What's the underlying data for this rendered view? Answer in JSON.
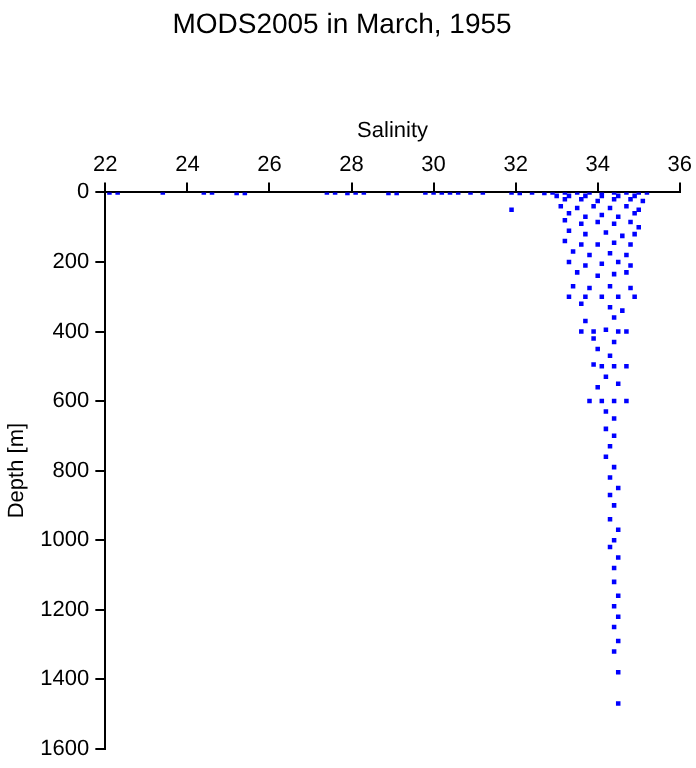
{
  "chart_data": {
    "type": "scatter",
    "title": "MODS2005 in March, 1955",
    "xlabel": "Salinity",
    "ylabel": "Depth [m]",
    "x": [
      22.1,
      22.3,
      23.4,
      24.4,
      24.6,
      25.2,
      25.4,
      27.4,
      27.6,
      27.9,
      28.1,
      28.3,
      28.9,
      29.1,
      29.8,
      30.0,
      30.2,
      30.4,
      30.6,
      30.9,
      31.2,
      31.9,
      32.1,
      32.4,
      32.7,
      32.9,
      33.2,
      33.5,
      33.8,
      34.1,
      34.4,
      34.7,
      35.0,
      35.2,
      31.9,
      33.0,
      33.3,
      33.7,
      34.1,
      34.5,
      34.9,
      33.2,
      33.6,
      34.0,
      34.4,
      34.8,
      35.1,
      33.1,
      33.5,
      33.9,
      34.3,
      34.7,
      35.0,
      33.3,
      33.7,
      34.1,
      34.5,
      34.9,
      33.2,
      33.6,
      34.0,
      34.4,
      34.8,
      35.0,
      33.3,
      33.7,
      34.2,
      34.6,
      34.9,
      33.2,
      33.6,
      34.0,
      34.4,
      34.8,
      33.4,
      33.8,
      34.3,
      34.7,
      33.3,
      33.7,
      34.1,
      34.5,
      34.8,
      33.5,
      34.0,
      34.4,
      34.7,
      33.4,
      33.8,
      34.3,
      34.8,
      33.3,
      33.7,
      34.1,
      34.5,
      34.9,
      33.6,
      34.3,
      34.6,
      33.7,
      34.4,
      33.6,
      33.9,
      34.2,
      34.5,
      34.7,
      33.9,
      34.4,
      34.0,
      34.3,
      33.9,
      34.1,
      34.4,
      34.7,
      34.2,
      34.0,
      34.5,
      33.8,
      34.1,
      34.4,
      34.7,
      34.2,
      34.4,
      34.2,
      34.4,
      34.3,
      34.2,
      34.4,
      34.3,
      34.5,
      34.3,
      34.4,
      34.3,
      34.5,
      34.4,
      34.3,
      34.5,
      34.4,
      34.4,
      34.5,
      34.4,
      34.5,
      34.4,
      34.5,
      34.4,
      34.5,
      34.5
    ],
    "values": [
      0,
      0,
      0,
      0,
      0,
      2,
      2,
      0,
      0,
      2,
      0,
      0,
      2,
      2,
      0,
      0,
      0,
      0,
      0,
      0,
      0,
      0,
      2,
      0,
      2,
      0,
      0,
      0,
      0,
      0,
      0,
      0,
      0,
      0,
      50,
      10,
      10,
      10,
      10,
      10,
      10,
      20,
      20,
      25,
      20,
      20,
      25,
      40,
      45,
      40,
      45,
      40,
      50,
      60,
      70,
      65,
      70,
      60,
      80,
      90,
      85,
      90,
      85,
      100,
      110,
      120,
      115,
      125,
      120,
      140,
      150,
      150,
      145,
      150,
      170,
      180,
      175,
      180,
      200,
      210,
      205,
      200,
      210,
      230,
      240,
      235,
      230,
      270,
      275,
      270,
      275,
      300,
      300,
      300,
      300,
      300,
      320,
      330,
      340,
      370,
      360,
      400,
      400,
      395,
      400,
      400,
      420,
      430,
      450,
      470,
      495,
      500,
      500,
      500,
      530,
      560,
      550,
      600,
      600,
      600,
      600,
      630,
      650,
      680,
      700,
      730,
      760,
      790,
      820,
      850,
      870,
      900,
      940,
      970,
      1000,
      1020,
      1050,
      1080,
      1120,
      1160,
      1190,
      1220,
      1250,
      1290,
      1320,
      1380,
      1470
    ],
    "color": "#0000ff",
    "marker": "square",
    "xlim": [
      22,
      36
    ],
    "xticks": [
      22,
      24,
      26,
      28,
      30,
      32,
      34,
      36
    ],
    "ylim": [
      1600,
      0
    ],
    "yticks": [
      0,
      200,
      400,
      600,
      800,
      1000,
      1200,
      1400,
      1600
    ],
    "grid": false,
    "legend": false
  }
}
